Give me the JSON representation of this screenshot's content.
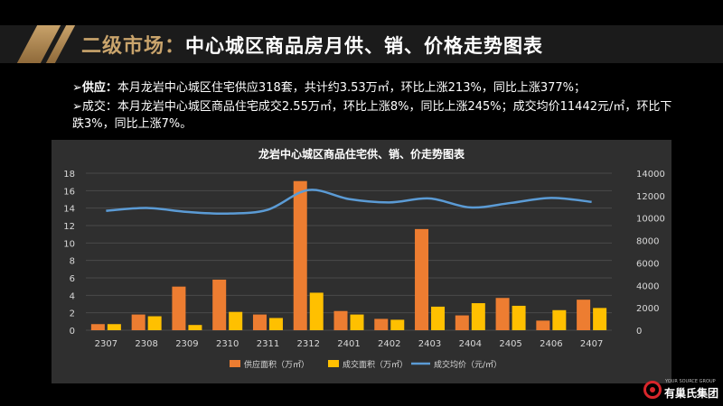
{
  "header": {
    "title_main": "二级市场：",
    "title_sub": "中心城区商品房月供、销、价格走势图表"
  },
  "bullets": [
    {
      "label": "➢供应：",
      "text": "本月龙岩中心城区住宅供应318套，共计约3.53万㎡，环比上涨213%，同比上涨377%；"
    },
    {
      "label": "➢成交：",
      "text": "本月龙岩中心城区商品住宅成交2.55万㎡，环比上涨8%，同比上涨245%；成交均价11442元/㎡，环比下跌3%，同比上涨7%。"
    }
  ],
  "logo": {
    "small": "YOUR SOURCE GROUP",
    "name": "有巢氏集团"
  },
  "chart_data": {
    "type": "bar",
    "title": "龙岩中心城区商品住宅供、销、价走势图表",
    "categories": [
      "2307",
      "2308",
      "2309",
      "2310",
      "2311",
      "2312",
      "2401",
      "2402",
      "2403",
      "2404",
      "2405",
      "2406",
      "2407"
    ],
    "series": [
      {
        "name": "供应面积（万㎡）",
        "type": "bar",
        "axis": "left",
        "color": "#ed7d31",
        "values": [
          0.7,
          1.8,
          5.0,
          5.8,
          1.8,
          17.1,
          2.2,
          1.3,
          11.6,
          1.7,
          3.7,
          1.1,
          3.5
        ]
      },
      {
        "name": "成交面积（万㎡）",
        "type": "bar",
        "axis": "left",
        "color": "#ffc000",
        "values": [
          0.7,
          1.6,
          0.6,
          2.1,
          1.4,
          4.3,
          1.8,
          1.2,
          2.7,
          3.1,
          2.8,
          2.3,
          2.55
        ]
      },
      {
        "name": "成交均价（元/㎡）",
        "type": "line",
        "axis": "right",
        "color": "#5b9bd5",
        "values": [
          10650,
          10900,
          10550,
          10400,
          10750,
          12500,
          11700,
          11400,
          11750,
          10950,
          11350,
          11800,
          11442
        ]
      }
    ],
    "ylim_left": [
      0,
      18
    ],
    "yticks_left": [
      0,
      2,
      4,
      6,
      8,
      10,
      12,
      14,
      16,
      18
    ],
    "ylim_right": [
      0,
      14000
    ],
    "yticks_right": [
      0,
      2000,
      4000,
      6000,
      8000,
      10000,
      12000,
      14000
    ],
    "grid": true,
    "legend_position": "bottom"
  }
}
